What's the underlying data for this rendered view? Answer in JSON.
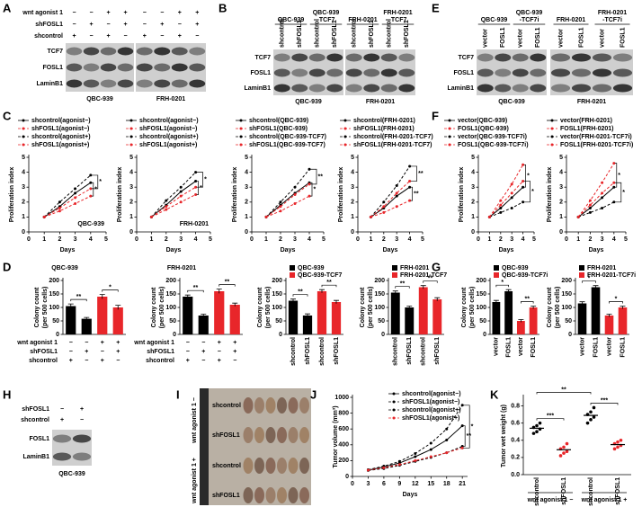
{
  "blots": [
    {
      "panel": "A",
      "row_labels": [
        "wnt agonist 1",
        "shFOSL1",
        "shcontrol"
      ],
      "signs": [
        [
          "−",
          "−",
          "+",
          "+",
          "−",
          "−",
          "+",
          "+"
        ],
        [
          "−",
          "+",
          "−",
          "+",
          "−",
          "+",
          "−",
          "+"
        ],
        [
          "+",
          "−",
          "+",
          "−",
          "+",
          "−",
          "+",
          "−"
        ]
      ],
      "bands": [
        "TCF7",
        "FOSL1",
        "LaminB1"
      ],
      "groups": [
        "QBC-939",
        "FRH-0201"
      ]
    },
    {
      "panel": "B",
      "headers": [
        [
          "QBC-939"
        ],
        [
          "QBC-939",
          "-TCF7"
        ],
        [
          "FRH-0201"
        ],
        [
          "FRH-0201",
          "-TCF7"
        ]
      ],
      "lanes": [
        "shcontrol",
        "shFOSL1",
        "shcontrol",
        "shFOSL1",
        "shcontrol",
        "shFOSL1",
        "shcontrol",
        "shFOSL1"
      ],
      "bands": [
        "TCF7",
        "FOSL1",
        "LaminB1"
      ],
      "groups": [
        "QBC-939",
        "FRH-0201"
      ]
    },
    {
      "panel": "E",
      "headers": [
        [
          "QBC-939"
        ],
        [
          "QBC-939",
          "-TCF7i"
        ],
        [
          "FRH-0201"
        ],
        [
          "FRH-0201",
          "-TCF7i"
        ]
      ],
      "lanes": [
        "vector",
        "FOSL1",
        "vector",
        "FOSL1",
        "vector",
        "FOSL1",
        "vector",
        "FOSL1"
      ],
      "bands": [
        "TCF7",
        "FOSL1",
        "LaminB1"
      ],
      "groups": [
        "QBC-939",
        "FRH-0201"
      ]
    },
    {
      "panel": "H",
      "row_labels": [
        "shFOSL1",
        "shcontrol"
      ],
      "signs": [
        [
          "−",
          "+"
        ],
        [
          "+",
          "−"
        ]
      ],
      "bands": [
        "FOSL1",
        "LaminB1"
      ],
      "groups": [
        "QBC-939"
      ]
    }
  ],
  "photo": {
    "panel": "I",
    "row_labels": [
      "shcontrol",
      "shFOSL1",
      "shcontrol",
      "shFOSL1"
    ],
    "side_labels": [
      "wnt agonist 1 −",
      "wnt agonist 1 +"
    ]
  },
  "chart_data": [
    {
      "type": "line",
      "panel": "C",
      "title": "QBC-939",
      "xlabel": "Days",
      "ylabel": "Proliferation index",
      "x": [
        1,
        2,
        3,
        4
      ],
      "xlim": [
        0,
        5
      ],
      "xticks": [
        0,
        1,
        2,
        3,
        4,
        5
      ],
      "ylim": [
        0,
        5
      ],
      "yticks": [
        0,
        1,
        2,
        3,
        4,
        5
      ],
      "annotations": [
        "*",
        "*"
      ],
      "series": [
        {
          "name": "shcontrol(agonist−)",
          "color": "#000000",
          "dashed": false,
          "values": [
            1,
            1.7,
            2.6,
            3.3
          ]
        },
        {
          "name": "shFOSL1(agonist−)",
          "color": "#e8262a",
          "dashed": true,
          "values": [
            1,
            1.4,
            1.9,
            2.4
          ]
        },
        {
          "name": "shcontrol(agonist+)",
          "color": "#000000",
          "dashed": true,
          "values": [
            1,
            2.0,
            2.9,
            3.8
          ]
        },
        {
          "name": "shFOSL1(agonist+)",
          "color": "#e8262a",
          "dashed": true,
          "values": [
            1,
            1.6,
            2.3,
            2.9
          ]
        }
      ]
    },
    {
      "type": "line",
      "title": "FRH-0201",
      "xlabel": "Days",
      "ylabel": "Proliferation index",
      "x": [
        1,
        2,
        3,
        4
      ],
      "xlim": [
        0,
        5
      ],
      "xticks": [
        0,
        1,
        2,
        3,
        4,
        5
      ],
      "ylim": [
        0,
        5
      ],
      "yticks": [
        0,
        1,
        2,
        3,
        4,
        5
      ],
      "annotations": [
        "*",
        "*"
      ],
      "series": [
        {
          "name": "shcontrol(agonist−)",
          "color": "#000000",
          "dashed": false,
          "values": [
            1,
            1.8,
            2.7,
            3.4
          ]
        },
        {
          "name": "shFOSL1(agonist−)",
          "color": "#e8262a",
          "dashed": true,
          "values": [
            1,
            1.5,
            2.0,
            2.5
          ]
        },
        {
          "name": "shcontrol(agonist+)",
          "color": "#000000",
          "dashed": true,
          "values": [
            1,
            2.1,
            3.0,
            4.0
          ]
        },
        {
          "name": "shFOSL1(agonist+)",
          "color": "#e8262a",
          "dashed": true,
          "values": [
            1,
            1.7,
            2.4,
            3.0
          ]
        }
      ]
    },
    {
      "type": "line",
      "xlabel": "Days",
      "ylabel": "Proliferation index",
      "x": [
        1,
        2,
        3,
        4
      ],
      "xlim": [
        0,
        5
      ],
      "xticks": [
        0,
        1,
        2,
        3,
        4,
        5
      ],
      "ylim": [
        0,
        5
      ],
      "yticks": [
        0,
        1,
        2,
        3,
        4,
        5
      ],
      "annotations": [
        "*",
        "**"
      ],
      "series": [
        {
          "name": "shcontrol(QBC-939)",
          "color": "#000000",
          "dashed": false,
          "values": [
            1,
            1.8,
            2.6,
            3.3
          ]
        },
        {
          "name": "shFOSL1(QBC-939)",
          "color": "#e8262a",
          "dashed": true,
          "values": [
            1,
            1.4,
            1.9,
            2.4
          ]
        },
        {
          "name": "shcontrol(QBC-939-TCF7)",
          "color": "#000000",
          "dashed": true,
          "values": [
            1,
            2.0,
            3.0,
            4.2
          ]
        },
        {
          "name": "shFOSL1(QBC-939-TCF7)",
          "color": "#e8262a",
          "dashed": true,
          "values": [
            1,
            1.7,
            2.5,
            3.2
          ]
        }
      ]
    },
    {
      "type": "line",
      "xlabel": "Days",
      "ylabel": "Proliferation index",
      "x": [
        1,
        2,
        3,
        4
      ],
      "xlim": [
        0,
        5
      ],
      "xticks": [
        0,
        1,
        2,
        3,
        4,
        5
      ],
      "ylim": [
        0,
        5
      ],
      "yticks": [
        0,
        1,
        2,
        3,
        4,
        5
      ],
      "annotations": [
        "**",
        "**"
      ],
      "series": [
        {
          "name": "shcontrol(FRH-0201)",
          "color": "#000000",
          "dashed": false,
          "values": [
            1,
            1.6,
            2.4,
            3.0
          ]
        },
        {
          "name": "shFOSL1(FRH-0201)",
          "color": "#e8262a",
          "dashed": true,
          "values": [
            1,
            1.3,
            1.7,
            2.1
          ]
        },
        {
          "name": "shcontrol(FRH-0201-TCF7)",
          "color": "#000000",
          "dashed": true,
          "values": [
            1,
            2.0,
            3.1,
            4.4
          ]
        },
        {
          "name": "shFOSL1(FRH-0201-TCF7)",
          "color": "#e8262a",
          "dashed": true,
          "values": [
            1,
            1.7,
            2.6,
            3.4
          ]
        }
      ]
    },
    {
      "type": "line",
      "panel": "F",
      "xlabel": "Days",
      "ylabel": "Proliferation index",
      "x": [
        1,
        2,
        3,
        4
      ],
      "xlim": [
        0,
        5
      ],
      "xticks": [
        0,
        1,
        2,
        3,
        4,
        5
      ],
      "ylim": [
        0,
        5
      ],
      "yticks": [
        0,
        1,
        2,
        3,
        4,
        5
      ],
      "annotations": [
        "*",
        "*"
      ],
      "series": [
        {
          "name": "vector(QBC-939)",
          "color": "#000000",
          "dashed": false,
          "values": [
            1,
            1.6,
            2.3,
            3.0
          ]
        },
        {
          "name": "FOSL1(QBC-939)",
          "color": "#e8262a",
          "dashed": true,
          "values": [
            1,
            2.1,
            3.2,
            4.5
          ]
        },
        {
          "name": "vector(QBC-939-TCF7i)",
          "color": "#000000",
          "dashed": true,
          "values": [
            1,
            1.3,
            1.6,
            2.0
          ]
        },
        {
          "name": "FOSL1(QBC-939-TCF7i)",
          "color": "#e8262a",
          "dashed": true,
          "values": [
            1,
            1.8,
            2.6,
            3.4
          ]
        }
      ]
    },
    {
      "type": "line",
      "xlabel": "Days",
      "ylabel": "Proliferation index",
      "x": [
        1,
        2,
        3,
        4
      ],
      "xlim": [
        0,
        5
      ],
      "xticks": [
        0,
        1,
        2,
        3,
        4,
        5
      ],
      "ylim": [
        0,
        5
      ],
      "yticks": [
        0,
        1,
        2,
        3,
        4,
        5
      ],
      "annotations": [
        "*",
        "*"
      ],
      "series": [
        {
          "name": "vector(FRH-0201)",
          "color": "#000000",
          "dashed": false,
          "values": [
            1,
            1.6,
            2.3,
            3.0
          ]
        },
        {
          "name": "FOSL1(FRH-0201)",
          "color": "#e8262a",
          "dashed": true,
          "values": [
            1,
            2.1,
            3.3,
            4.6
          ]
        },
        {
          "name": "vector(FRH-0201-TCF7i)",
          "color": "#000000",
          "dashed": true,
          "values": [
            1,
            1.3,
            1.6,
            2.0
          ]
        },
        {
          "name": "FOSL1(FRH-0201-TCF7i)",
          "color": "#e8262a",
          "dashed": true,
          "values": [
            1,
            1.8,
            2.6,
            3.3
          ]
        }
      ]
    },
    {
      "type": "bar",
      "panel": "D",
      "title": "QBC-939",
      "ylabel": [
        "Colony count",
        "(per 500 cells)"
      ],
      "ylim": [
        0,
        200
      ],
      "yticks": [
        0,
        50,
        100,
        150,
        200
      ],
      "values": [
        105,
        58,
        140,
        100
      ],
      "errors": [
        8,
        5,
        8,
        8
      ],
      "colors": [
        "#000000",
        "#000000",
        "#e8262a",
        "#e8262a"
      ],
      "annotations": [
        "**",
        "*"
      ],
      "sign_rows": [
        {
          "label": "wnt agonist 1",
          "signs": [
            "−",
            "−",
            "+",
            "+"
          ]
        },
        {
          "label": "shFOSL1",
          "signs": [
            "−",
            "+",
            "−",
            "+"
          ]
        },
        {
          "label": "shcontrol",
          "signs": [
            "+",
            "−",
            "+",
            "−"
          ]
        }
      ]
    },
    {
      "type": "bar",
      "title": "FRH-0201",
      "ylabel": [
        "Colony count",
        "(per 500 cells)"
      ],
      "ylim": [
        0,
        200
      ],
      "yticks": [
        0,
        50,
        100,
        150,
        200
      ],
      "values": [
        140,
        70,
        160,
        110
      ],
      "errors": [
        6,
        5,
        8,
        6
      ],
      "colors": [
        "#000000",
        "#000000",
        "#e8262a",
        "#e8262a"
      ],
      "annotations": [
        "**",
        "**"
      ],
      "sign_rows": [
        {
          "label": "wnt agonist 1",
          "signs": [
            "−",
            "−",
            "+",
            "+"
          ]
        },
        {
          "label": "shFOSL1",
          "signs": [
            "−",
            "+",
            "−",
            "+"
          ]
        },
        {
          "label": "shcontrol",
          "signs": [
            "+",
            "−",
            "+",
            "−"
          ]
        }
      ]
    },
    {
      "type": "bar",
      "ylabel": [
        "Colony count",
        "(per 500 cells)"
      ],
      "ylim": [
        0,
        200
      ],
      "yticks": [
        0,
        50,
        100,
        150,
        200
      ],
      "categories": [
        "shcontrol",
        "shFOSL1",
        "shcontrol",
        "shFOSL1"
      ],
      "values": [
        125,
        70,
        160,
        120
      ],
      "errors": [
        6,
        6,
        6,
        6
      ],
      "colors": [
        "#000000",
        "#000000",
        "#e8262a",
        "#e8262a"
      ],
      "annotations": [
        "**",
        "**"
      ],
      "legend": [
        {
          "name": "QBC-939",
          "color": "#000000"
        },
        {
          "name": "QBC-939-TCF7",
          "color": "#e8262a"
        }
      ]
    },
    {
      "type": "bar",
      "ylabel": [
        "Colony count",
        "(per 500 cells)"
      ],
      "ylim": [
        0,
        200
      ],
      "yticks": [
        0,
        50,
        100,
        150,
        200
      ],
      "categories": [
        "shcontrol",
        "shFOSL1",
        "shcontrol",
        "shFOSL1"
      ],
      "values": [
        155,
        100,
        175,
        130
      ],
      "errors": [
        6,
        5,
        6,
        6
      ],
      "colors": [
        "#000000",
        "#000000",
        "#e8262a",
        "#e8262a"
      ],
      "annotations": [
        "**",
        "**"
      ],
      "legend": [
        {
          "name": "FRH-0201",
          "color": "#000000"
        },
        {
          "name": "FRH-0201-TCF7",
          "color": "#e8262a"
        }
      ]
    },
    {
      "type": "bar",
      "panel": "G",
      "ylabel": [
        "Colony count",
        "(per 500 cells)"
      ],
      "ylim": [
        0,
        200
      ],
      "yticks": [
        0,
        50,
        100,
        150,
        200
      ],
      "categories": [
        "vector",
        "FOSL1",
        "vector",
        "FOSL1"
      ],
      "values": [
        120,
        160,
        50,
        100
      ],
      "errors": [
        6,
        6,
        5,
        5
      ],
      "colors": [
        "#000000",
        "#000000",
        "#e8262a",
        "#e8262a"
      ],
      "annotations": [
        "*",
        "**"
      ],
      "legend": [
        {
          "name": "QBC-939",
          "color": "#000000"
        },
        {
          "name": "QBC-939-TCF7i",
          "color": "#e8262a"
        }
      ]
    },
    {
      "type": "bar",
      "ylabel": [
        "Colony count",
        "(per 500 cells)"
      ],
      "ylim": [
        0,
        200
      ],
      "yticks": [
        0,
        50,
        100,
        150,
        200
      ],
      "categories": [
        "vector",
        "FOSL1",
        "vector",
        "FOSL1"
      ],
      "values": [
        115,
        175,
        70,
        100
      ],
      "errors": [
        6,
        6,
        5,
        5
      ],
      "colors": [
        "#000000",
        "#000000",
        "#e8262a",
        "#e8262a"
      ],
      "annotations": [
        "*",
        "*"
      ],
      "legend": [
        {
          "name": "FRH-0201",
          "color": "#000000"
        },
        {
          "name": "FRH-0201-TCF7i",
          "color": "#e8262a"
        }
      ]
    },
    {
      "type": "line",
      "panel": "J",
      "xlabel": "Days",
      "ylabel": "Tumor volume (mm³)",
      "x": [
        3,
        6,
        9,
        12,
        15,
        18,
        21
      ],
      "xlim": [
        0,
        22
      ],
      "xticks": [
        0,
        3,
        6,
        9,
        12,
        15,
        18,
        21
      ],
      "ylim": [
        0,
        1000
      ],
      "yticks": [
        0,
        200,
        400,
        600,
        800,
        1000
      ],
      "annotations": [
        "**",
        "*"
      ],
      "series": [
        {
          "name": "shcontrol(agonist−)",
          "color": "#000000",
          "dashed": false,
          "values": [
            80,
            120,
            170,
            250,
            340,
            460,
            640
          ]
        },
        {
          "name": "shFOSL1(agonist−)",
          "color": "#000000",
          "dashed": true,
          "values": [
            75,
            100,
            140,
            190,
            240,
            300,
            380
          ]
        },
        {
          "name": "shcontrol(agonist+)",
          "color": "#000000",
          "dashed": true,
          "values": [
            85,
            130,
            190,
            290,
            420,
            600,
            900
          ]
        },
        {
          "name": "shFOSL1(agonist+)",
          "color": "#e8262a",
          "dashed": true,
          "values": [
            80,
            110,
            150,
            200,
            250,
            300,
            360
          ]
        }
      ]
    },
    {
      "type": "dot",
      "panel": "K",
      "ylabel": "Tumor wet weight (g)",
      "ylim": [
        0,
        0.9
      ],
      "yticks": [
        {
          "value": 0,
          "label": "0.0"
        },
        0.2,
        0.4,
        0.6,
        0.8
      ],
      "categories": [
        "shcontrol",
        "shFOSL1",
        "shcontrol",
        "shFOSL1"
      ],
      "colors": [
        "#000000",
        "#e8262a",
        "#000000",
        "#e8262a"
      ],
      "means": [
        0.54,
        0.29,
        0.69,
        0.35
      ],
      "points": [
        [
          0.48,
          0.5,
          0.53,
          0.55,
          0.57,
          0.6
        ],
        [
          0.22,
          0.25,
          0.27,
          0.3,
          0.32,
          0.36
        ],
        [
          0.6,
          0.64,
          0.67,
          0.7,
          0.73,
          0.78
        ],
        [
          0.3,
          0.32,
          0.34,
          0.36,
          0.38,
          0.4
        ]
      ],
      "groups": [
        "wnt agonist 1 −",
        "wnt agonist 1 +"
      ],
      "annotations": [
        "***",
        "**",
        "***"
      ]
    }
  ]
}
